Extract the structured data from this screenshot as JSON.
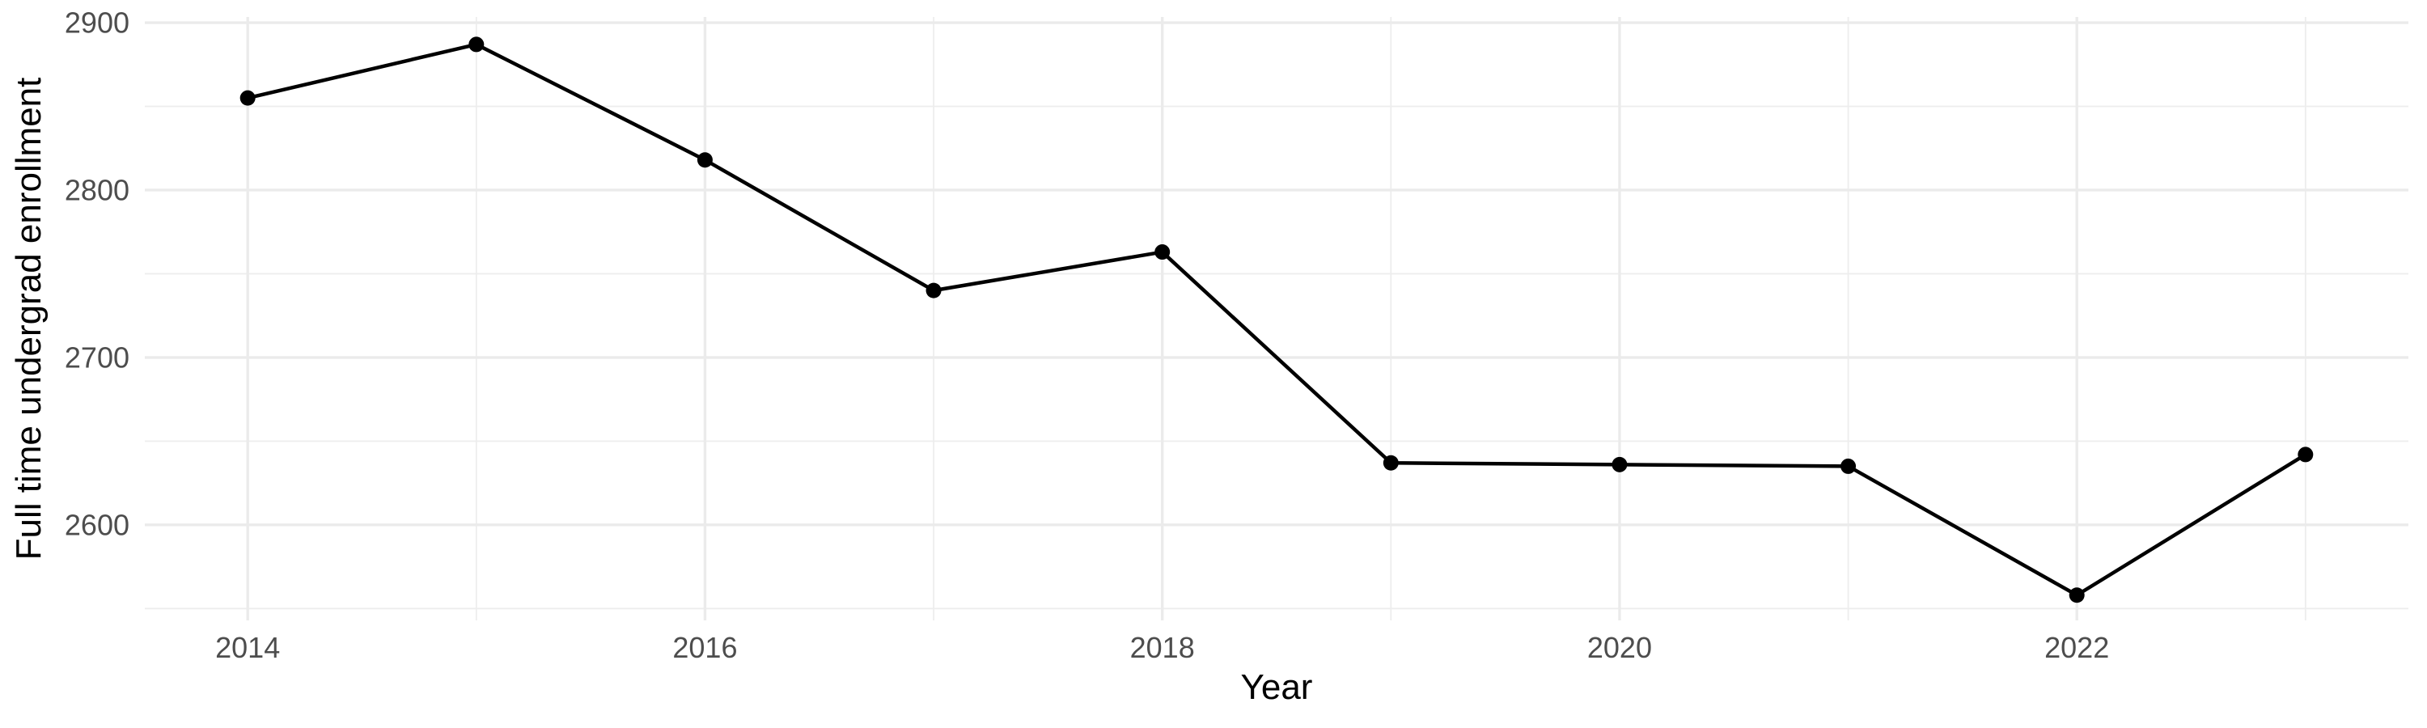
{
  "chart_data": {
    "type": "line",
    "title": "",
    "xlabel": "Year",
    "ylabel": "Full time undergrad enrollment",
    "x": [
      2014,
      2015,
      2016,
      2017,
      2018,
      2019,
      2020,
      2021,
      2022,
      2023
    ],
    "series": [
      {
        "name": "Full time undergrad enrollment",
        "values": [
          2855,
          2887,
          2818,
          2740,
          2763,
          2637,
          2636,
          2635,
          2558,
          2642
        ]
      }
    ],
    "x_ticks": [
      2014,
      2016,
      2018,
      2020,
      2022
    ],
    "x_minor": [
      2015,
      2017,
      2019,
      2021,
      2023
    ],
    "y_ticks": [
      2600,
      2700,
      2800,
      2900
    ],
    "y_minor": [
      2550,
      2650,
      2750,
      2850
    ],
    "xlim": [
      2013.55,
      2023.45
    ],
    "ylim": [
      2542.9,
      2903.4
    ],
    "grid": true,
    "legend": false,
    "colors": {
      "background": "#FFFFFF",
      "grid_major": "#EBEBEB",
      "grid_minor": "#EDEDED",
      "line": "#000000",
      "point": "#000000",
      "tick_label": "#4D4D4D",
      "axis_title": "#000000"
    }
  }
}
